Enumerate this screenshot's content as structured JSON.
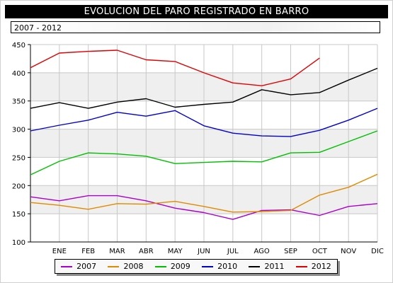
{
  "title": "EVOLUCION DEL PARO REGISTRADO EN BARRO",
  "subtitle": "2007 - 2012",
  "chart_data": {
    "type": "line",
    "categories": [
      "",
      "ENE",
      "FEB",
      "MAR",
      "ABR",
      "MAY",
      "JUN",
      "JUL",
      "AGO",
      "SEP",
      "OCT",
      "NOV",
      "DIC"
    ],
    "ylim": [
      100,
      450
    ],
    "yticks": [
      100,
      150,
      200,
      250,
      300,
      350,
      400,
      450
    ],
    "ytick_labels": [
      "100",
      "150",
      "200",
      "250",
      "300",
      "350",
      "400",
      "450"
    ],
    "grid": true,
    "legend_position": "bottom",
    "series": [
      {
        "name": "2007",
        "color": "#aa00cc",
        "values": [
          180,
          173,
          182,
          182,
          173,
          160,
          152,
          140,
          156,
          157,
          147,
          163,
          168
        ]
      },
      {
        "name": "2008",
        "color": "#e08a00",
        "values": [
          170,
          165,
          158,
          168,
          167,
          172,
          163,
          153,
          154,
          156,
          183,
          197,
          220
        ]
      },
      {
        "name": "2009",
        "color": "#00c000",
        "values": [
          219,
          243,
          258,
          256,
          252,
          239,
          241,
          243,
          242,
          258,
          259,
          278,
          297
        ]
      },
      {
        "name": "2010",
        "color": "#0000d0",
        "values": [
          297,
          307,
          316,
          330,
          323,
          333,
          306,
          293,
          288,
          287,
          298,
          316,
          337
        ]
      },
      {
        "name": "2011",
        "color": "#000000",
        "values": [
          337,
          347,
          337,
          348,
          354,
          339,
          344,
          348,
          370,
          361,
          365,
          387,
          408
        ]
      },
      {
        "name": "2012",
        "color": "#e00000",
        "values": [
          409,
          435,
          438,
          440,
          423,
          420,
          400,
          382,
          377,
          389,
          426,
          null,
          null
        ]
      }
    ]
  }
}
